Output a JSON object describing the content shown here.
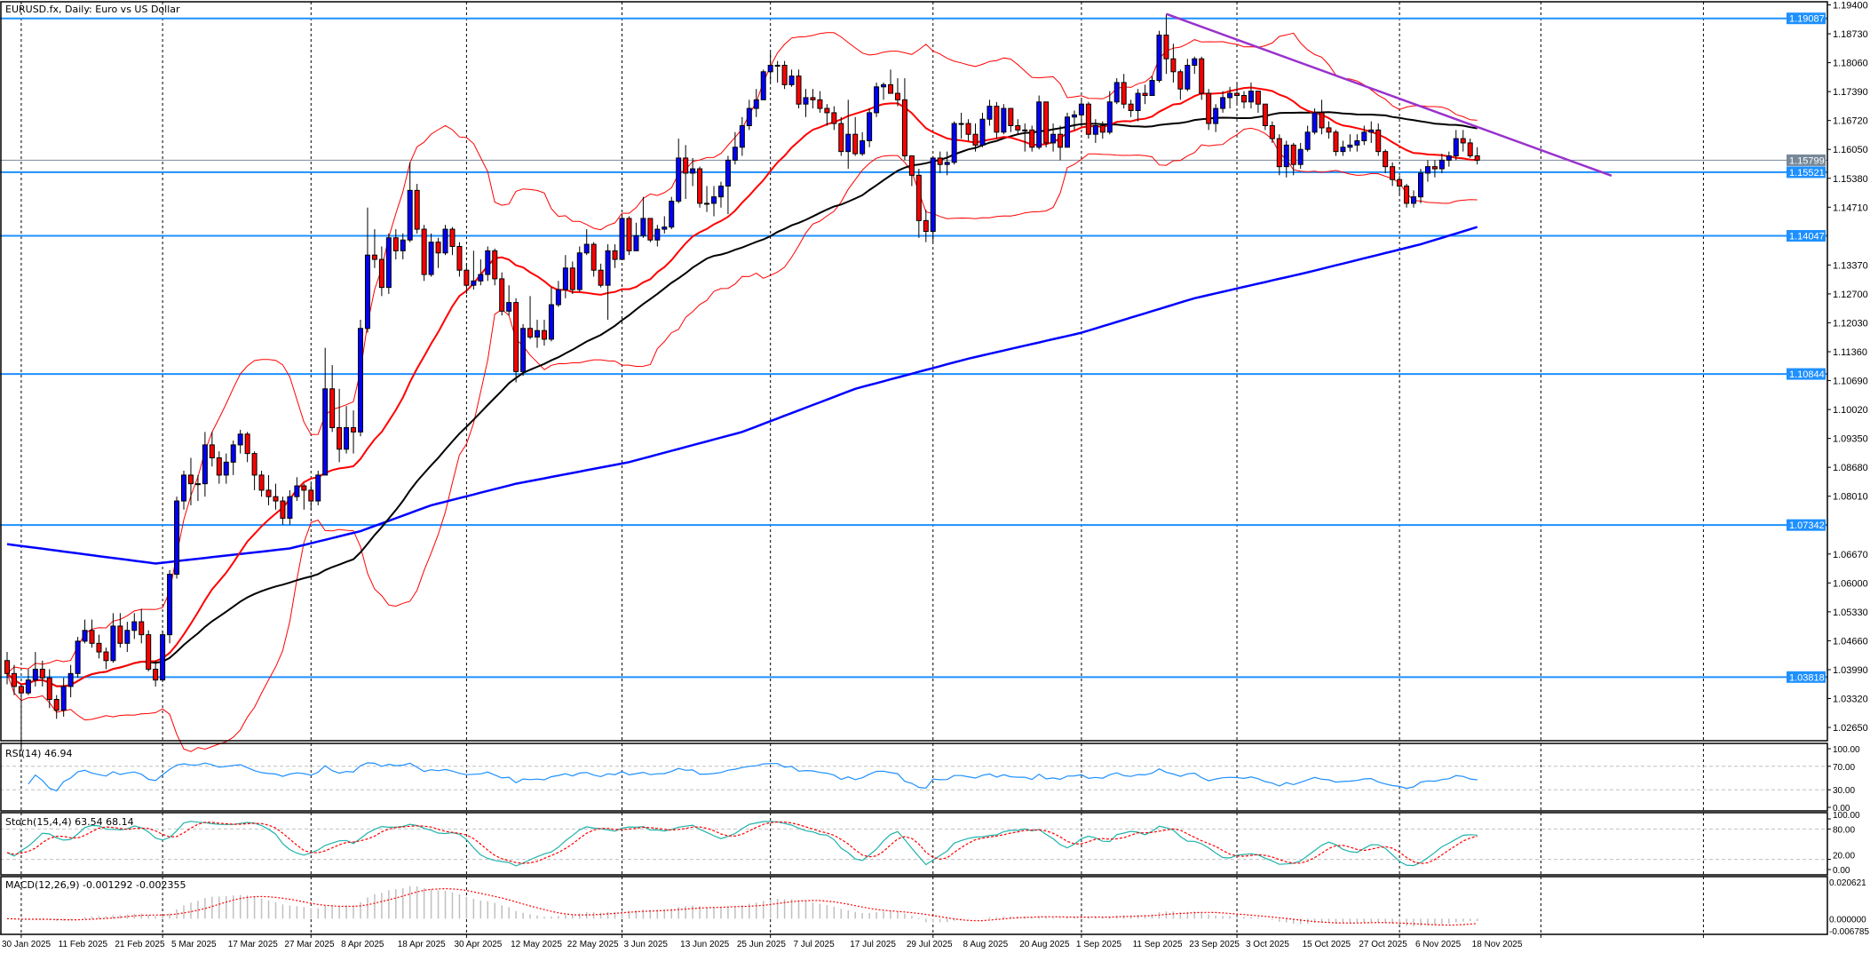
{
  "header": {
    "title": "EURUSD.fx, Daily:  Euro vs US Dollar"
  },
  "indicators": {
    "rsi_label": "RSI(14) 46.94",
    "stoch_label": "Stoch(15,4,4) 63.54 68.14",
    "macd_label": "MACD(12,26,9) -0.001292 -0.002355",
    "rsi_axis": [
      "100.00",
      "70.00",
      "30.00",
      "0.00"
    ],
    "stoch_axis": [
      "100.00",
      "80.00",
      "20.00",
      "0.00"
    ],
    "macd_axis": [
      "0.020621",
      "0.000000",
      "-0.006785"
    ]
  },
  "colors": {
    "bull": "#0000ff",
    "bear": "#ff0000",
    "level": "#1e90ff",
    "current_price": "#778899",
    "ma_fast": "#ff0000",
    "ma_mid": "#000000",
    "ma_slow": "#0000ff",
    "bands": "#ff0000",
    "trendline": "#9932cc",
    "rsi": "#1e90ff",
    "stoch_main": "#20b2aa",
    "stoch_signal": "#ff0000",
    "macd_hist": "#c0c0c0",
    "macd_signal": "#ff0000"
  },
  "chart_data": {
    "type": "candlestick",
    "symbol": "EURUSD.fx",
    "timeframe": "Daily",
    "first_date": "30 Jan 2025",
    "ylim": [
      1.0234,
      1.1951
    ],
    "y_ticks": [
      "1.19400",
      "1.18730",
      "1.18060",
      "1.17390",
      "1.16720",
      "1.16050",
      "1.15380",
      "1.14710",
      "1.13370",
      "1.12700",
      "1.12030",
      "1.11360",
      "1.10690",
      "1.10020",
      "1.09350",
      "1.08680",
      "1.08010",
      "1.06670",
      "1.06000",
      "1.05330",
      "1.04660",
      "1.03990",
      "1.03320",
      "1.02650"
    ],
    "x_ticks": [
      "30 Jan 2025",
      "11 Feb 2025",
      "21 Feb 2025",
      "5 Mar 2025",
      "17 Mar 2025",
      "27 Mar 2025",
      "8 Apr 2025",
      "18 Apr 2025",
      "30 Apr 2025",
      "12 May 2025",
      "22 May 2025",
      "3 Jun 2025",
      "13 Jun 2025",
      "25 Jun 2025",
      "7 Jul 2025",
      "17 Jul 2025",
      "29 Jul 2025",
      "8 Aug 2025",
      "20 Aug 2025",
      "1 Sep 2025",
      "11 Sep 2025",
      "23 Sep 2025",
      "3 Oct 2025",
      "15 Oct 2025",
      "27 Oct 2025",
      "6 Nov 2025",
      "18 Nov 2025"
    ],
    "first_open": 1.042,
    "close": [
      1.039,
      1.036,
      1.0345,
      1.0375,
      1.04,
      1.038,
      1.033,
      1.0305,
      1.036,
      1.039,
      1.0465,
      1.049,
      1.046,
      1.044,
      1.042,
      1.05,
      1.046,
      1.049,
      1.051,
      1.048,
      1.04,
      1.0375,
      1.048,
      1.062,
      1.079,
      1.085,
      1.083,
      1.083,
      1.092,
      1.089,
      1.085,
      1.088,
      1.092,
      1.0945,
      1.09,
      1.085,
      1.0815,
      1.08,
      1.079,
      1.075,
      1.08,
      1.0825,
      1.0815,
      1.079,
      1.085,
      1.105,
      1.096,
      1.091,
      1.096,
      1.095,
      1.119,
      1.136,
      1.135,
      1.1285,
      1.14,
      1.137,
      1.1395,
      1.151,
      1.142,
      1.1315,
      1.139,
      1.1365,
      1.142,
      1.138,
      1.1325,
      1.129,
      1.13,
      1.1315,
      1.137,
      1.1305,
      1.123,
      1.125,
      1.109,
      1.119,
      1.117,
      1.1185,
      1.1165,
      1.1245,
      1.128,
      1.133,
      1.128,
      1.1365,
      1.1385,
      1.1325,
      1.129,
      1.137,
      1.135,
      1.1445,
      1.137,
      1.1405,
      1.1445,
      1.1395,
      1.142,
      1.1425,
      1.1485,
      1.1585,
      1.155,
      1.156,
      1.148,
      1.148,
      1.1495,
      1.152,
      1.158,
      1.161,
      1.166,
      1.17,
      1.172,
      1.1785,
      1.18,
      1.18,
      1.1755,
      1.1775,
      1.171,
      1.1725,
      1.172,
      1.17,
      1.169,
      1.1665,
      1.16,
      1.164,
      1.1595,
      1.1625,
      1.169,
      1.175,
      1.1755,
      1.1735,
      1.172,
      1.159,
      1.1545,
      1.144,
      1.1415,
      1.1585,
      1.157,
      1.1575,
      1.1665,
      1.1665,
      1.164,
      1.1615,
      1.1675,
      1.1705,
      1.1645,
      1.17,
      1.166,
      1.165,
      1.165,
      1.161,
      1.1715,
      1.162,
      1.164,
      1.161,
      1.168,
      1.1685,
      1.171,
      1.164,
      1.166,
      1.1645,
      1.1715,
      1.176,
      1.171,
      1.1695,
      1.1735,
      1.173,
      1.1765,
      1.187,
      1.1815,
      1.1785,
      1.1745,
      1.18,
      1.1815,
      1.1735,
      1.1665,
      1.17,
      1.1725,
      1.1735,
      1.173,
      1.1715,
      1.174,
      1.171,
      1.166,
      1.163,
      1.1565,
      1.1615,
      1.157,
      1.1605,
      1.1645,
      1.169,
      1.1655,
      1.1645,
      1.16,
      1.161,
      1.1615,
      1.1625,
      1.1645,
      1.165,
      1.16,
      1.1565,
      1.1535,
      1.152,
      1.148,
      1.1495,
      1.155,
      1.1565,
      1.156,
      1.158,
      1.159,
      1.163,
      1.162,
      1.159,
      1.158
    ],
    "high": [
      1.044,
      1.041,
      1.0365,
      1.04,
      1.044,
      1.042,
      1.04,
      1.034,
      1.038,
      1.041,
      1.0475,
      1.0515,
      1.0515,
      1.048,
      1.045,
      1.053,
      1.053,
      1.051,
      1.053,
      1.054,
      1.049,
      1.042,
      1.049,
      1.063,
      1.08,
      1.086,
      1.089,
      1.085,
      1.095,
      1.095,
      1.0905,
      1.09,
      1.093,
      1.0955,
      1.095,
      1.0905,
      1.086,
      1.085,
      1.083,
      1.08,
      1.0815,
      1.0845,
      1.083,
      1.083,
      1.086,
      1.1145,
      1.1105,
      1.105,
      1.101,
      1.1,
      1.121,
      1.147,
      1.142,
      1.138,
      1.141,
      1.142,
      1.141,
      1.1575,
      1.1525,
      1.143,
      1.141,
      1.14,
      1.143,
      1.1425,
      1.139,
      1.134,
      1.137,
      1.135,
      1.138,
      1.1375,
      1.132,
      1.129,
      1.126,
      1.12,
      1.1265,
      1.121,
      1.121,
      1.1285,
      1.13,
      1.136,
      1.1345,
      1.138,
      1.142,
      1.139,
      1.134,
      1.1385,
      1.1385,
      1.1455,
      1.145,
      1.1435,
      1.1495,
      1.1445,
      1.143,
      1.145,
      1.1495,
      1.163,
      1.1615,
      1.1585,
      1.1565,
      1.152,
      1.152,
      1.153,
      1.159,
      1.1645,
      1.168,
      1.172,
      1.1745,
      1.179,
      1.183,
      1.181,
      1.181,
      1.179,
      1.179,
      1.1745,
      1.1745,
      1.174,
      1.171,
      1.1705,
      1.168,
      1.172,
      1.168,
      1.1645,
      1.17,
      1.176,
      1.176,
      1.179,
      1.177,
      1.177,
      1.159,
      1.156,
      1.1465,
      1.159,
      1.16,
      1.16,
      1.167,
      1.169,
      1.1675,
      1.1665,
      1.169,
      1.172,
      1.1715,
      1.171,
      1.17,
      1.1675,
      1.1665,
      1.166,
      1.173,
      1.1715,
      1.1665,
      1.166,
      1.169,
      1.1695,
      1.172,
      1.1715,
      1.1675,
      1.167,
      1.174,
      1.177,
      1.178,
      1.172,
      1.1745,
      1.1755,
      1.1775,
      1.188,
      1.1919,
      1.185,
      1.179,
      1.1815,
      1.182,
      1.182,
      1.1745,
      1.171,
      1.174,
      1.175,
      1.176,
      1.174,
      1.176,
      1.174,
      1.171,
      1.167,
      1.164,
      1.1625,
      1.162,
      1.162,
      1.166,
      1.17,
      1.172,
      1.167,
      1.165,
      1.1625,
      1.164,
      1.164,
      1.166,
      1.167,
      1.1665,
      1.1605,
      1.1575,
      1.1545,
      1.1525,
      1.151,
      1.156,
      1.158,
      1.158,
      1.1595,
      1.16,
      1.165,
      1.165,
      1.163,
      1.161
    ],
    "low": [
      1.0365,
      1.034,
      1.021,
      1.034,
      1.036,
      1.036,
      1.031,
      1.0285,
      1.029,
      1.0335,
      1.038,
      1.046,
      1.045,
      1.0425,
      1.04,
      1.0415,
      1.045,
      1.044,
      1.047,
      1.046,
      1.0395,
      1.036,
      1.037,
      1.046,
      1.061,
      1.077,
      1.078,
      1.079,
      1.08,
      1.087,
      1.083,
      1.083,
      1.085,
      1.09,
      1.088,
      1.0815,
      1.08,
      1.078,
      1.077,
      1.0735,
      1.0735,
      1.079,
      1.077,
      1.077,
      1.078,
      1.085,
      1.095,
      1.088,
      1.09,
      1.09,
      1.094,
      1.118,
      1.133,
      1.1265,
      1.127,
      1.135,
      1.135,
      1.139,
      1.141,
      1.13,
      1.131,
      1.133,
      1.136,
      1.136,
      1.131,
      1.127,
      1.128,
      1.129,
      1.13,
      1.129,
      1.122,
      1.122,
      1.1065,
      1.108,
      1.1165,
      1.1145,
      1.115,
      1.116,
      1.124,
      1.126,
      1.127,
      1.1275,
      1.136,
      1.131,
      1.1285,
      1.121,
      1.133,
      1.135,
      1.136,
      1.137,
      1.14,
      1.139,
      1.138,
      1.141,
      1.142,
      1.148,
      1.149,
      1.152,
      1.147,
      1.146,
      1.145,
      1.147,
      1.1455,
      1.157,
      1.159,
      1.165,
      1.168,
      1.172,
      1.176,
      1.176,
      1.1745,
      1.175,
      1.17,
      1.168,
      1.17,
      1.169,
      1.166,
      1.165,
      1.159,
      1.156,
      1.159,
      1.159,
      1.161,
      1.168,
      1.172,
      1.1735,
      1.1705,
      1.158,
      1.152,
      1.14,
      1.139,
      1.139,
      1.155,
      1.1545,
      1.157,
      1.163,
      1.1625,
      1.16,
      1.161,
      1.166,
      1.163,
      1.164,
      1.1645,
      1.164,
      1.16,
      1.16,
      1.1605,
      1.161,
      1.16,
      1.158,
      1.161,
      1.165,
      1.166,
      1.163,
      1.162,
      1.163,
      1.164,
      1.171,
      1.17,
      1.168,
      1.167,
      1.171,
      1.173,
      1.176,
      1.178,
      1.176,
      1.172,
      1.174,
      1.178,
      1.172,
      1.165,
      1.1645,
      1.169,
      1.17,
      1.171,
      1.17,
      1.17,
      1.169,
      1.165,
      1.162,
      1.1545,
      1.154,
      1.1545,
      1.156,
      1.16,
      1.164,
      1.164,
      1.163,
      1.159,
      1.159,
      1.16,
      1.16,
      1.1615,
      1.162,
      1.159,
      1.155,
      1.152,
      1.15,
      1.147,
      1.147,
      1.148,
      1.153,
      1.154,
      1.155,
      1.1565,
      1.158,
      1.16,
      1.1585,
      1.157
    ],
    "ma_slow": [
      {
        "date": "30 Jan 2025",
        "value": 1.069
      },
      {
        "date": "28 Feb 2025",
        "value": 1.0645
      },
      {
        "date": "27 Mar 2025",
        "value": 1.068
      },
      {
        "date": "10 Apr 2025",
        "value": 1.072
      },
      {
        "date": "24 Apr 2025",
        "value": 1.078
      },
      {
        "date": "12 May 2025",
        "value": 1.083
      },
      {
        "date": "3 Jun 2025",
        "value": 1.088
      },
      {
        "date": "25 Jun 2025",
        "value": 1.095
      },
      {
        "date": "17 Jul 2025",
        "value": 1.105
      },
      {
        "date": "8 Aug 2025",
        "value": 1.112
      },
      {
        "date": "1 Sep 2025",
        "value": 1.118
      },
      {
        "date": "23 Sep 2025",
        "value": 1.126
      },
      {
        "date": "15 Oct 2025",
        "value": 1.132
      },
      {
        "date": "6 Nov 2025",
        "value": 1.1385
      },
      {
        "date": "18 Nov 2025",
        "value": 1.1425
      }
    ],
    "ma_fast_period": 20,
    "ma_mid_period": 50,
    "bands": {
      "period": 20,
      "deviation": 2
    },
    "levels": [
      {
        "value": 1.19087,
        "label": "1.19087"
      },
      {
        "value": 1.15521,
        "label": "1.15521"
      },
      {
        "value": 1.14047,
        "label": "1.14047"
      },
      {
        "value": 1.10844,
        "label": "1.10844"
      },
      {
        "value": 1.07342,
        "label": "1.07342"
      },
      {
        "value": 1.03818,
        "label": "1.03818"
      }
    ],
    "current_price": {
      "value": 1.15799,
      "label": "1.15799"
    },
    "trendline": {
      "from": {
        "date": "17 Sep 2025",
        "value": 1.1919
      },
      "to": {
        "date": "15 Dec 2025",
        "value": 1.1544
      }
    },
    "rsi": {
      "period": 14,
      "levels": [
        70,
        30
      ],
      "range": [
        0,
        100
      ]
    },
    "stoch": {
      "k": 15,
      "d": 4,
      "slowing": 4,
      "levels": [
        80,
        20
      ],
      "range": [
        0,
        100
      ]
    },
    "macd": {
      "fast": 12,
      "slow": 26,
      "signal": 9,
      "range": [
        -0.006785,
        0.020621
      ]
    }
  }
}
